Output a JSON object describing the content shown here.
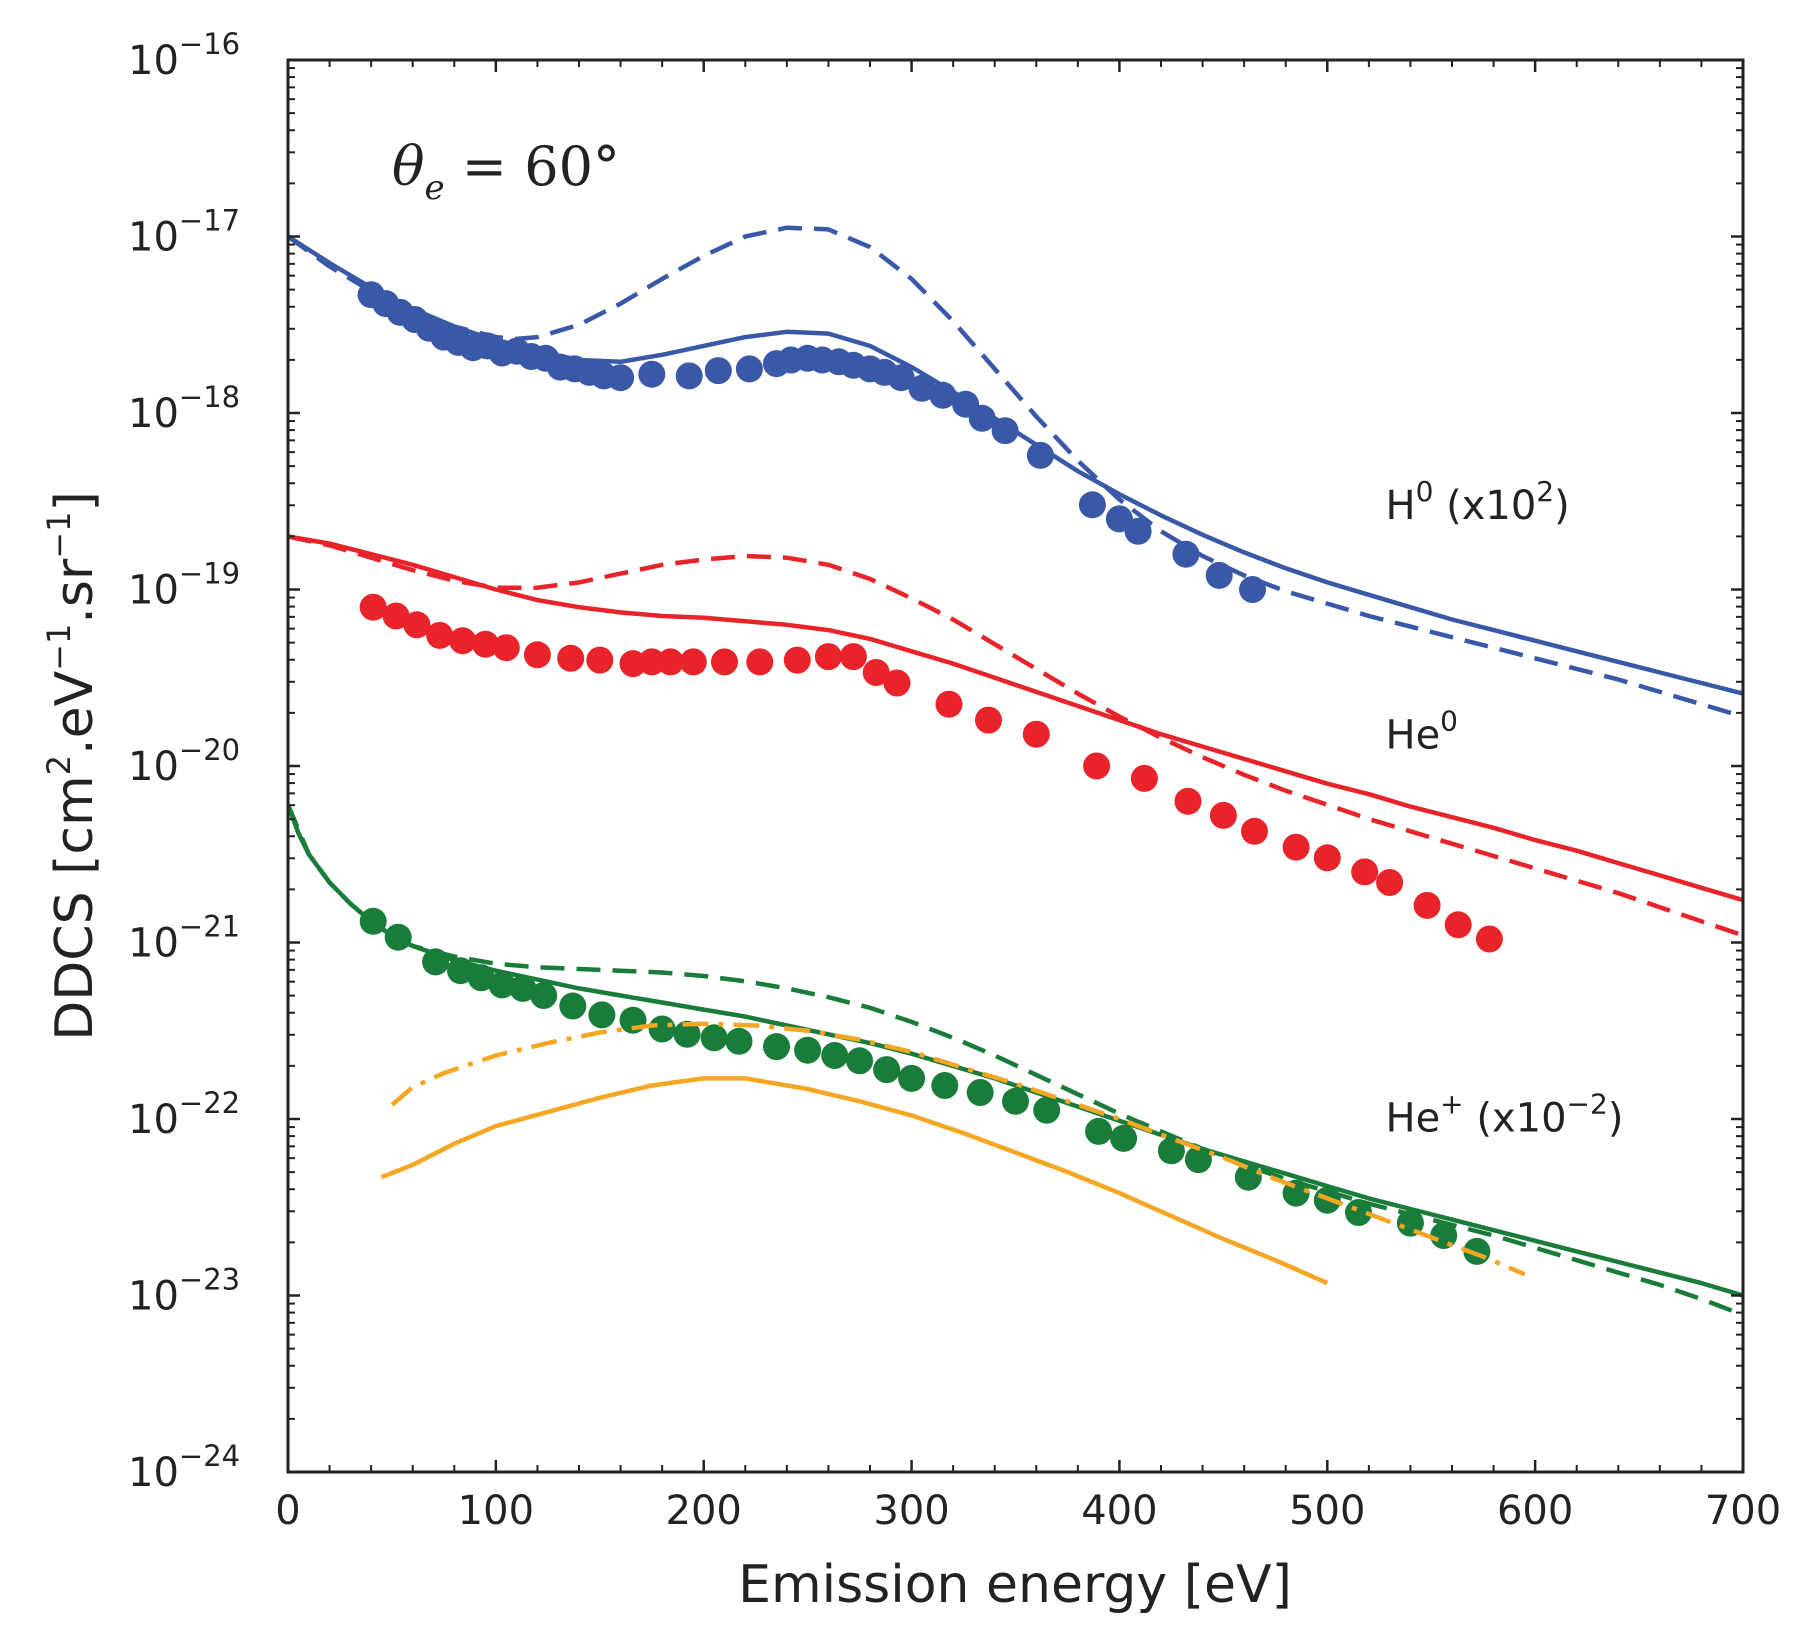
{
  "chart_data": {
    "type": "line",
    "xlabel": "Emission energy [eV]",
    "ylabel_parts": [
      "DDCS [cm",
      "2",
      ".eV",
      "−1",
      ".sr",
      "−1",
      "]"
    ],
    "xlim": [
      0,
      700
    ],
    "ylog_range": [
      -24,
      -16
    ],
    "x_ticks": [
      0,
      100,
      200,
      300,
      400,
      500,
      600,
      700
    ],
    "x_tick_labels": [
      "0",
      "100",
      "200",
      "300",
      "400",
      "500",
      "600",
      "700"
    ],
    "y_tick_exponents": [
      -24,
      -23,
      -22,
      -21,
      -20,
      -19,
      -18,
      -17,
      -16
    ],
    "y_tick_base": "10",
    "y_tick_sup": [
      "−24",
      "−23",
      "−22",
      "−21",
      "−20",
      "−19",
      "−18",
      "−17",
      "−16"
    ],
    "theta_label": {
      "symbol": "θ",
      "sub": "e",
      "rest": " = 60°"
    },
    "annotations": [
      {
        "id": "h0",
        "base": "H",
        "sup": "0",
        "mid": " (x10",
        "sup2": "2",
        "end": ")",
        "at": [
          528,
          -18.6
        ]
      },
      {
        "id": "he0",
        "base": "He",
        "sup": "0",
        "mid": "",
        "sup2": "",
        "end": "",
        "at": [
          528,
          -19.9
        ]
      },
      {
        "id": "heplus",
        "base": "He",
        "sup": "+",
        "mid": " (x10",
        "sup2": "−2",
        "end": ")",
        "at": [
          528,
          -22.07
        ]
      }
    ],
    "series": [
      {
        "name": "H0 experiment",
        "kind": "markers",
        "color": "#3a58a8",
        "x": [
          40,
          47,
          54,
          61,
          68,
          75,
          82,
          89,
          96,
          103,
          110,
          117,
          124,
          131,
          138,
          145,
          152,
          160,
          175,
          193,
          207,
          222,
          235,
          242,
          250,
          257,
          265,
          272,
          280,
          287,
          295,
          305,
          315,
          326,
          334,
          345,
          362,
          387,
          400,
          409,
          432,
          448,
          464
        ],
        "y": [
          -17.33,
          -17.38,
          -17.43,
          -17.47,
          -17.52,
          -17.57,
          -17.6,
          -17.63,
          -17.62,
          -17.66,
          -17.65,
          -17.68,
          -17.69,
          -17.74,
          -17.75,
          -17.77,
          -17.79,
          -17.8,
          -17.78,
          -17.79,
          -17.76,
          -17.75,
          -17.72,
          -17.7,
          -17.69,
          -17.7,
          -17.71,
          -17.73,
          -17.75,
          -17.77,
          -17.8,
          -17.86,
          -17.9,
          -17.95,
          -18.03,
          -18.1,
          -18.24,
          -18.52,
          -18.6,
          -18.67,
          -18.8,
          -18.92,
          -19.0
        ]
      },
      {
        "name": "H0 solid",
        "kind": "solid",
        "color": "#3a58a8",
        "x": [
          0,
          20,
          40,
          60,
          80,
          100,
          120,
          140,
          160,
          180,
          200,
          220,
          240,
          260,
          280,
          300,
          320,
          340,
          360,
          380,
          400,
          420,
          440,
          460,
          480,
          500,
          520,
          540,
          560,
          580,
          600,
          620,
          640,
          660,
          680,
          700
        ],
        "y": [
          -17.0,
          -17.15,
          -17.29,
          -17.41,
          -17.51,
          -17.59,
          -17.65,
          -17.7,
          -17.71,
          -17.67,
          -17.62,
          -17.57,
          -17.54,
          -17.55,
          -17.62,
          -17.74,
          -17.88,
          -18.03,
          -18.18,
          -18.33,
          -18.46,
          -18.58,
          -18.69,
          -18.79,
          -18.88,
          -18.96,
          -19.03,
          -19.1,
          -19.17,
          -19.23,
          -19.29,
          -19.35,
          -19.41,
          -19.47,
          -19.53,
          -19.59
        ]
      },
      {
        "name": "H0 dashed",
        "kind": "dashed",
        "color": "#3a58a8",
        "x": [
          0,
          20,
          40,
          60,
          80,
          100,
          110,
          120,
          140,
          160,
          180,
          200,
          220,
          240,
          260,
          280,
          300,
          320,
          340,
          360,
          380,
          400,
          420,
          440,
          460,
          480,
          500,
          520,
          540,
          560,
          580,
          600,
          620,
          640,
          660,
          680,
          700
        ],
        "y": [
          -17.0,
          -17.17,
          -17.31,
          -17.42,
          -17.51,
          -17.57,
          -17.58,
          -17.57,
          -17.5,
          -17.38,
          -17.24,
          -17.11,
          -17.0,
          -16.95,
          -16.96,
          -17.06,
          -17.24,
          -17.48,
          -17.75,
          -18.02,
          -18.27,
          -18.49,
          -18.67,
          -18.81,
          -18.92,
          -19.01,
          -19.08,
          -19.15,
          -19.21,
          -19.27,
          -19.33,
          -19.39,
          -19.45,
          -19.51,
          -19.58,
          -19.65,
          -19.72
        ]
      },
      {
        "name": "He0 experiment",
        "kind": "markers",
        "color": "#e8232a",
        "x": [
          41,
          52,
          62,
          73,
          84,
          95,
          105,
          120,
          136,
          150,
          166,
          175,
          184,
          195,
          210,
          227,
          245,
          260,
          272,
          283,
          293,
          318,
          337,
          360,
          389,
          412,
          433,
          450,
          465,
          485,
          500,
          518,
          530,
          548,
          563,
          578
        ],
        "y": [
          -19.1,
          -19.15,
          -19.2,
          -19.26,
          -19.29,
          -19.31,
          -19.33,
          -19.37,
          -19.39,
          -19.4,
          -19.42,
          -19.41,
          -19.41,
          -19.41,
          -19.41,
          -19.41,
          -19.4,
          -19.38,
          -19.38,
          -19.47,
          -19.53,
          -19.65,
          -19.74,
          -19.82,
          -20.0,
          -20.07,
          -20.2,
          -20.28,
          -20.37,
          -20.46,
          -20.52,
          -20.6,
          -20.66,
          -20.79,
          -20.9,
          -20.98
        ]
      },
      {
        "name": "He0 solid",
        "kind": "solid",
        "color": "#e8232a",
        "x": [
          0,
          20,
          40,
          60,
          80,
          100,
          120,
          140,
          160,
          180,
          200,
          220,
          240,
          260,
          280,
          300,
          320,
          340,
          360,
          380,
          400,
          420,
          440,
          460,
          480,
          500,
          520,
          540,
          560,
          580,
          600,
          620,
          640,
          660,
          680,
          700
        ],
        "y": [
          -18.7,
          -18.74,
          -18.8,
          -18.86,
          -18.93,
          -19.0,
          -19.06,
          -19.1,
          -19.13,
          -19.15,
          -19.16,
          -19.18,
          -19.2,
          -19.23,
          -19.28,
          -19.35,
          -19.42,
          -19.5,
          -19.58,
          -19.66,
          -19.74,
          -19.82,
          -19.89,
          -19.96,
          -20.03,
          -20.1,
          -20.16,
          -20.23,
          -20.29,
          -20.35,
          -20.42,
          -20.48,
          -20.55,
          -20.62,
          -20.69,
          -20.76
        ]
      },
      {
        "name": "He0 dashed",
        "kind": "dashed",
        "color": "#e8232a",
        "x": [
          0,
          20,
          40,
          60,
          80,
          100,
          120,
          140,
          160,
          180,
          200,
          220,
          240,
          260,
          280,
          300,
          320,
          340,
          360,
          380,
          400,
          420,
          440,
          460,
          480,
          500,
          520,
          540,
          560,
          580,
          600,
          620,
          640,
          660,
          680,
          700
        ],
        "y": [
          -18.7,
          -18.75,
          -18.82,
          -18.89,
          -18.95,
          -18.99,
          -18.99,
          -18.96,
          -18.91,
          -18.86,
          -18.83,
          -18.81,
          -18.82,
          -18.86,
          -18.94,
          -19.05,
          -19.17,
          -19.31,
          -19.45,
          -19.59,
          -19.72,
          -19.84,
          -19.95,
          -20.05,
          -20.14,
          -20.22,
          -20.3,
          -20.37,
          -20.44,
          -20.51,
          -20.58,
          -20.65,
          -20.72,
          -20.8,
          -20.88,
          -20.96
        ]
      },
      {
        "name": "He+ experiment",
        "kind": "markers",
        "color": "#1a7c3a",
        "x": [
          41,
          53,
          71,
          83,
          93,
          103,
          113,
          123,
          137,
          151,
          166,
          180,
          192,
          205,
          217,
          235,
          250,
          263,
          275,
          288,
          300,
          316,
          333,
          350,
          365,
          390,
          402,
          425,
          438,
          462,
          485,
          500,
          515,
          540,
          556,
          572
        ],
        "y": [
          -20.88,
          -20.97,
          -21.11,
          -21.16,
          -21.2,
          -21.24,
          -21.26,
          -21.3,
          -21.36,
          -21.41,
          -21.44,
          -21.49,
          -21.52,
          -21.54,
          -21.56,
          -21.59,
          -21.61,
          -21.64,
          -21.67,
          -21.72,
          -21.77,
          -21.81,
          -21.85,
          -21.9,
          -21.95,
          -22.07,
          -22.11,
          -22.18,
          -22.23,
          -22.33,
          -22.42,
          -22.46,
          -22.53,
          -22.59,
          -22.66,
          -22.75
        ]
      },
      {
        "name": "He+ solid",
        "kind": "solid",
        "color": "#1a7c3a",
        "x": [
          0,
          5,
          10,
          20,
          30,
          40,
          50,
          60,
          80,
          100,
          120,
          140,
          160,
          180,
          200,
          220,
          240,
          260,
          280,
          300,
          320,
          340,
          360,
          380,
          400,
          420,
          440,
          460,
          480,
          500,
          520,
          540,
          560,
          580,
          600,
          620,
          640,
          660,
          680,
          700
        ],
        "y": [
          -20.22,
          -20.38,
          -20.5,
          -20.66,
          -20.78,
          -20.88,
          -20.96,
          -21.02,
          -21.1,
          -21.16,
          -21.21,
          -21.26,
          -21.3,
          -21.34,
          -21.38,
          -21.42,
          -21.47,
          -21.52,
          -21.57,
          -21.63,
          -21.7,
          -21.77,
          -21.85,
          -21.93,
          -22.01,
          -22.09,
          -22.17,
          -22.24,
          -22.31,
          -22.38,
          -22.45,
          -22.51,
          -22.57,
          -22.63,
          -22.69,
          -22.75,
          -22.81,
          -22.87,
          -22.93,
          -23.0
        ]
      },
      {
        "name": "He+ dashed",
        "kind": "dashed",
        "color": "#1a7c3a",
        "x": [
          0,
          10,
          20,
          30,
          40,
          50,
          60,
          80,
          100,
          120,
          140,
          160,
          180,
          200,
          220,
          240,
          260,
          280,
          300,
          320,
          340,
          360,
          380,
          400,
          420,
          440,
          460,
          480,
          500,
          520,
          540,
          560,
          580,
          600,
          620,
          640,
          660,
          680,
          700
        ],
        "y": [
          -20.22,
          -20.5,
          -20.66,
          -20.78,
          -20.88,
          -20.96,
          -21.02,
          -21.08,
          -21.12,
          -21.14,
          -21.15,
          -21.16,
          -21.17,
          -21.19,
          -21.22,
          -21.26,
          -21.31,
          -21.37,
          -21.45,
          -21.54,
          -21.64,
          -21.75,
          -21.86,
          -21.97,
          -22.07,
          -22.17,
          -22.26,
          -22.34,
          -22.41,
          -22.48,
          -22.54,
          -22.6,
          -22.66,
          -22.73,
          -22.8,
          -22.87,
          -22.94,
          -23.02,
          -23.11
        ]
      },
      {
        "name": "He+ orange dash-dot",
        "kind": "dashdot",
        "color": "#f5a623",
        "x": [
          50,
          60,
          75,
          100,
          125,
          150,
          175,
          200,
          225,
          250,
          275,
          300,
          325,
          350,
          375,
          400,
          425,
          450,
          475,
          500,
          525,
          550,
          575,
          595
        ],
        "y": [
          -21.92,
          -21.82,
          -21.74,
          -21.64,
          -21.57,
          -21.51,
          -21.47,
          -21.46,
          -21.47,
          -21.5,
          -21.55,
          -21.62,
          -21.71,
          -21.8,
          -21.9,
          -22.0,
          -22.11,
          -22.22,
          -22.34,
          -22.45,
          -22.56,
          -22.67,
          -22.78,
          -22.88
        ]
      },
      {
        "name": "He+ orange solid",
        "kind": "solid",
        "color": "#f5a623",
        "x": [
          45,
          60,
          80,
          100,
          125,
          150,
          175,
          200,
          220,
          250,
          275,
          300,
          325,
          350,
          375,
          400,
          425,
          450,
          475,
          500
        ],
        "y": [
          -22.33,
          -22.26,
          -22.14,
          -22.04,
          -21.96,
          -21.88,
          -21.81,
          -21.77,
          -21.77,
          -21.83,
          -21.9,
          -21.98,
          -22.08,
          -22.19,
          -22.3,
          -22.42,
          -22.55,
          -22.68,
          -22.8,
          -22.93
        ]
      }
    ]
  }
}
